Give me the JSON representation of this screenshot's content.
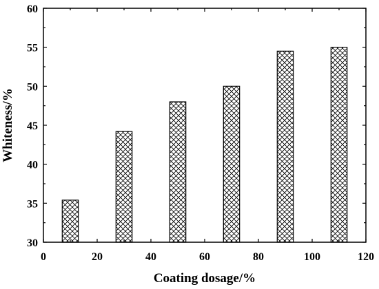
{
  "chart_data": {
    "type": "bar",
    "title": "",
    "xlabel": "Coating dosage/%",
    "ylabel": "Whiteness/%",
    "xlim": [
      0,
      120
    ],
    "ylim": [
      30,
      60
    ],
    "x_ticks": [
      0,
      20,
      40,
      60,
      80,
      100,
      120
    ],
    "y_ticks": [
      30,
      35,
      40,
      45,
      50,
      55,
      60
    ],
    "bar_width": 6,
    "fill_pattern": "crosshatch",
    "grid": false,
    "x": [
      10,
      30,
      50,
      70,
      90,
      110
    ],
    "values": [
      35.4,
      44.2,
      48.0,
      50.0,
      54.5,
      55.0
    ]
  }
}
